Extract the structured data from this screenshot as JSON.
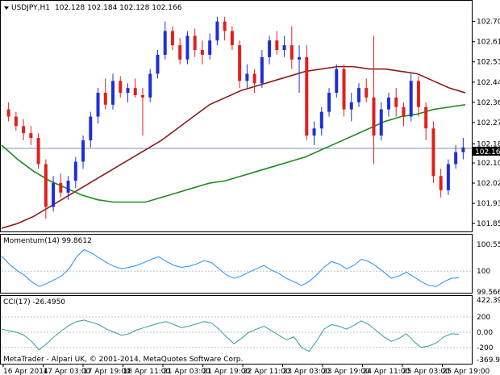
{
  "chart_data": [
    {
      "type": "candlestick",
      "title": "USDJPY,H1",
      "ohlc_header": "102.128 102.184 102.128 102.166",
      "symbol": "USDJPY",
      "timeframe": "H1",
      "ylim": [
        101.82,
        102.77
      ],
      "y_ticks": [
        "102.700",
        "102.615",
        "102.530",
        "102.445",
        "102.360",
        "102.275",
        "102.185",
        "102.105",
        "102.020",
        "101.935",
        "101.850"
      ],
      "price_line": 102.166,
      "price_label": "102.166",
      "colors": {
        "bull": "#1f2fd6",
        "bear": "#e0201c",
        "ma_slow": "#8b1a1a",
        "ma_fast": "#1e8c1e",
        "price_line": "#7f93b3",
        "frame": "#000000"
      },
      "series": [
        {
          "name": "moving-average-dark-red",
          "values": [
            101.83,
            101.85,
            101.88,
            101.92,
            101.96,
            102.0,
            102.04,
            102.08,
            102.12,
            102.16,
            102.2,
            102.25,
            102.3,
            102.35,
            102.38,
            102.41,
            102.43,
            102.45,
            102.47,
            102.49,
            102.5,
            102.51,
            102.51,
            102.5,
            102.5,
            102.49,
            102.48,
            102.45,
            102.42,
            102.4
          ]
        },
        {
          "name": "moving-average-green",
          "values": [
            102.18,
            102.12,
            102.07,
            102.03,
            102.0,
            101.97,
            101.95,
            101.94,
            101.94,
            101.94,
            101.96,
            101.98,
            102.0,
            102.02,
            102.03,
            102.05,
            102.07,
            102.09,
            102.11,
            102.13,
            102.16,
            102.19,
            102.22,
            102.25,
            102.28,
            102.3,
            102.31,
            102.33,
            102.34,
            102.35
          ]
        }
      ],
      "candles": [
        [
          102.33,
          102.36,
          102.28,
          102.3
        ],
        [
          102.3,
          102.32,
          102.24,
          102.26
        ],
        [
          102.26,
          102.29,
          102.2,
          102.23
        ],
        [
          102.23,
          102.26,
          102.18,
          102.21
        ],
        [
          102.21,
          102.23,
          102.08,
          102.1
        ],
        [
          102.1,
          102.12,
          101.87,
          101.92
        ],
        [
          101.92,
          102.05,
          101.9,
          102.02
        ],
        [
          102.02,
          102.06,
          101.96,
          101.98
        ],
        [
          101.98,
          102.05,
          101.95,
          102.03
        ],
        [
          102.03,
          102.13,
          102.0,
          102.11
        ],
        [
          102.11,
          102.22,
          102.08,
          102.2
        ],
        [
          102.2,
          102.32,
          102.17,
          102.3
        ],
        [
          102.3,
          102.42,
          102.27,
          102.4
        ],
        [
          102.4,
          102.46,
          102.33,
          102.35
        ],
        [
          102.35,
          102.48,
          102.33,
          102.45
        ],
        [
          102.45,
          102.47,
          102.38,
          102.4
        ],
        [
          102.4,
          102.44,
          102.36,
          102.42
        ],
        [
          102.42,
          102.46,
          102.38,
          102.39
        ],
        [
          102.39,
          102.42,
          102.22,
          102.38
        ],
        [
          102.38,
          102.5,
          102.36,
          102.48
        ],
        [
          102.48,
          102.58,
          102.46,
          102.56
        ],
        [
          102.56,
          102.7,
          102.54,
          102.66
        ],
        [
          102.66,
          102.68,
          102.58,
          102.6
        ],
        [
          102.6,
          102.63,
          102.52,
          102.54
        ],
        [
          102.54,
          102.66,
          102.52,
          102.64
        ],
        [
          102.64,
          102.67,
          102.55,
          102.58
        ],
        [
          102.58,
          102.62,
          102.52,
          102.56
        ],
        [
          102.56,
          102.65,
          102.54,
          102.62
        ],
        [
          102.62,
          102.72,
          102.6,
          102.7
        ],
        [
          102.7,
          102.72,
          102.62,
          102.66
        ],
        [
          102.66,
          102.68,
          102.58,
          102.6
        ],
        [
          102.6,
          102.62,
          102.42,
          102.45
        ],
        [
          102.45,
          102.52,
          102.42,
          102.48
        ],
        [
          102.48,
          102.5,
          102.4,
          102.44
        ],
        [
          102.44,
          102.58,
          102.42,
          102.55
        ],
        [
          102.55,
          102.64,
          102.52,
          102.62
        ],
        [
          102.62,
          102.66,
          102.56,
          102.58
        ],
        [
          102.58,
          102.64,
          102.55,
          102.6
        ],
        [
          102.6,
          102.68,
          102.5,
          102.54
        ],
        [
          102.54,
          102.6,
          102.4,
          102.55
        ],
        [
          102.55,
          102.6,
          102.2,
          102.22
        ],
        [
          102.22,
          102.28,
          102.18,
          102.25
        ],
        [
          102.25,
          102.34,
          102.22,
          102.32
        ],
        [
          102.32,
          102.42,
          102.3,
          102.4
        ],
        [
          102.4,
          102.52,
          102.38,
          102.5
        ],
        [
          102.5,
          102.52,
          102.3,
          102.33
        ],
        [
          102.33,
          102.4,
          102.28,
          102.36
        ],
        [
          102.36,
          102.44,
          102.34,
          102.42
        ],
        [
          102.42,
          102.46,
          102.36,
          102.38
        ],
        [
          102.38,
          102.64,
          102.1,
          102.22
        ],
        [
          102.22,
          102.36,
          102.2,
          102.33
        ],
        [
          102.33,
          102.4,
          102.3,
          102.38
        ],
        [
          102.38,
          102.42,
          102.3,
          102.34
        ],
        [
          102.34,
          102.36,
          102.26,
          102.3
        ],
        [
          102.3,
          102.48,
          102.28,
          102.45
        ],
        [
          102.45,
          102.47,
          102.3,
          102.34
        ],
        [
          102.34,
          102.36,
          102.2,
          102.25
        ],
        [
          102.25,
          102.28,
          102.02,
          102.05
        ],
        [
          102.05,
          102.08,
          101.96,
          101.99
        ],
        [
          101.99,
          102.12,
          101.97,
          102.1
        ],
        [
          102.1,
          102.18,
          102.08,
          102.15
        ],
        [
          102.15,
          102.21,
          102.12,
          102.17
        ]
      ],
      "x_ticks": [
        "16 Apr 2014",
        "17 Apr 03:00",
        "17 Apr 19:00",
        "18 Apr 11:00",
        "21 Apr 03:00",
        "21 Apr 19:00",
        "22 Apr 11:00",
        "23 Apr 03:00",
        "23 Apr 19:00",
        "24 Apr 11:00",
        "25 Apr 03:00",
        "25 Apr 19:00"
      ]
    },
    {
      "type": "line",
      "title": "Momentum(14) 99.8612",
      "ylim": [
        99.5663,
        100.5598
      ],
      "y_ticks": [
        "100.5598",
        "100",
        "99.5663"
      ],
      "level": 100,
      "colors": {
        "line": "#1e90ff",
        "level": "#c0c0c0"
      },
      "series": [
        {
          "name": "Momentum(14)",
          "values": [
            100.32,
            100.15,
            100.02,
            99.92,
            99.78,
            99.68,
            99.74,
            99.82,
            99.9,
            100.05,
            100.3,
            100.45,
            100.38,
            100.28,
            100.18,
            100.1,
            100.05,
            100.08,
            100.12,
            100.18,
            100.25,
            100.3,
            100.2,
            100.12,
            100.08,
            100.1,
            100.15,
            100.22,
            100.18,
            100.05,
            99.92,
            99.85,
            99.9,
            99.98,
            100.05,
            100.12,
            100.02,
            99.95,
            99.85,
            99.78,
            99.7,
            99.78,
            99.92,
            100.08,
            100.2,
            100.15,
            100.05,
            100.12,
            100.25,
            100.2,
            100.1,
            99.98,
            99.85,
            99.9,
            99.98,
            99.88,
            99.78,
            99.7,
            99.68,
            99.78,
            99.85,
            99.86
          ]
        }
      ]
    },
    {
      "type": "line",
      "title": "CCI(17) -26.4950",
      "ylim": [
        -369.9677,
        422.3953
      ],
      "y_ticks": [
        "422.3953",
        "200",
        "0.00",
        "-200",
        "-369.9677"
      ],
      "levels": [
        200,
        0,
        -200
      ],
      "colors": {
        "line": "#2aa198",
        "level": "#c0c0c0"
      },
      "series": [
        {
          "name": "CCI(17)",
          "values": [
            40,
            20,
            0,
            -40,
            -120,
            -230,
            -150,
            -60,
            20,
            90,
            140,
            160,
            130,
            100,
            40,
            0,
            -40,
            -20,
            30,
            60,
            90,
            120,
            140,
            100,
            60,
            80,
            110,
            140,
            120,
            40,
            -60,
            -150,
            -80,
            0,
            40,
            80,
            20,
            -40,
            -100,
            -60,
            -200,
            -250,
            -120,
            40,
            100,
            80,
            40,
            90,
            150,
            100,
            20,
            -60,
            -120,
            -80,
            -20,
            -120,
            -200,
            -180,
            -140,
            -60,
            -20,
            -26
          ]
        }
      ]
    }
  ],
  "footer": {
    "copyright": "MetaTrader - Alpari UK, © 2001-2014, MetaQuotes Software Corp."
  }
}
